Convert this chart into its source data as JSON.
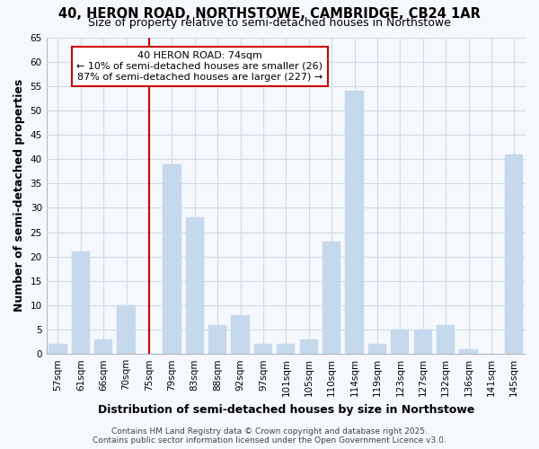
{
  "title": "40, HERON ROAD, NORTHSTOWE, CAMBRIDGE, CB24 1AR",
  "subtitle": "Size of property relative to semi-detached houses in Northstowe",
  "xlabel": "Distribution of semi-detached houses by size in Northstowe",
  "ylabel": "Number of semi-detached properties",
  "categories": [
    "57sqm",
    "61sqm",
    "66sqm",
    "70sqm",
    "75sqm",
    "79sqm",
    "83sqm",
    "88sqm",
    "92sqm",
    "97sqm",
    "101sqm",
    "105sqm",
    "110sqm",
    "114sqm",
    "119sqm",
    "123sqm",
    "127sqm",
    "132sqm",
    "136sqm",
    "141sqm",
    "145sqm"
  ],
  "values": [
    2,
    21,
    3,
    10,
    0,
    39,
    28,
    6,
    8,
    2,
    2,
    3,
    23,
    54,
    2,
    5,
    5,
    6,
    1,
    0,
    41
  ],
  "highlight_index": 4,
  "bar_color": "#c5d8ec",
  "highlight_line_color": "#cc0000",
  "ylim": [
    0,
    65
  ],
  "yticks": [
    0,
    5,
    10,
    15,
    20,
    25,
    30,
    35,
    40,
    45,
    50,
    55,
    60,
    65
  ],
  "annotation_text": "40 HERON ROAD: 74sqm\n← 10% of semi-detached houses are smaller (26)\n87% of semi-detached houses are larger (227) →",
  "annotation_box_color": "#ffffff",
  "annotation_box_edge_color": "#cc0000",
  "footer_line1": "Contains HM Land Registry data © Crown copyright and database right 2025.",
  "footer_line2": "Contains public sector information licensed under the Open Government Licence v3.0.",
  "background_color": "#f5f8fc",
  "grid_color": "#d0dce8",
  "title_fontsize": 10.5,
  "subtitle_fontsize": 9,
  "axis_label_fontsize": 9,
  "tick_fontsize": 7.5,
  "footer_fontsize": 6.5,
  "annotation_fontsize": 8
}
